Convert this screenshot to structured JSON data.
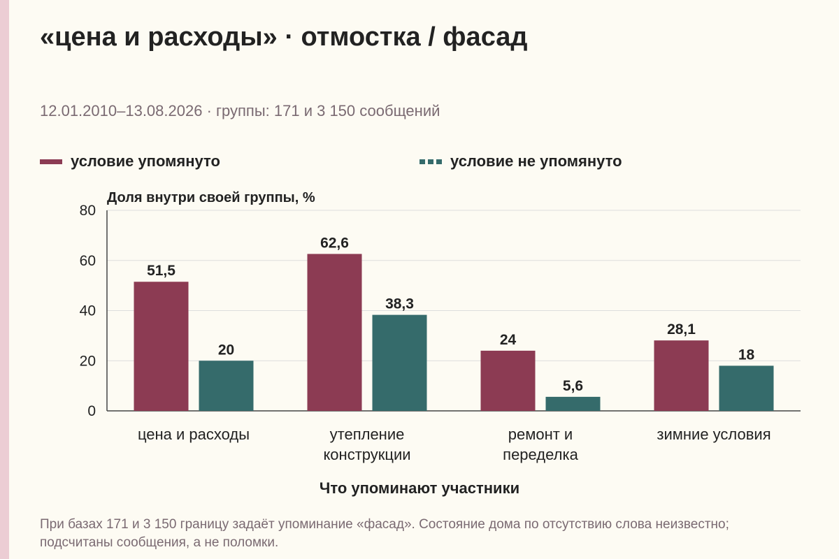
{
  "title": "«цена и расходы» · отмостка / фасад",
  "subtitle": "12.01.2010–13.08.2026 · группы: 171 и 3 150 сообщений",
  "note": "При базах 171 и 3 150 границу задаёт упоминание «фасад». Состояние дома по отсутствию слова неизвестно; подсчитаны сообщения, а не поломки.",
  "colors": {
    "mentioned": "#8c3b53",
    "not_mentioned": "#356b6b",
    "grid": "#dddddd",
    "axis": "#444444"
  },
  "chart_data": {
    "type": "bar",
    "title": "«цена и расходы» · отмостка / фасад",
    "categories": [
      [
        "цена и расходы"
      ],
      [
        "утепление",
        "конструкции"
      ],
      [
        "ремонт и",
        "переделка"
      ],
      [
        "зимние условия"
      ]
    ],
    "series": [
      {
        "name": "условие упомянуто",
        "values": [
          51.5,
          62.6,
          24,
          28.1
        ],
        "labels": [
          "51,5",
          "62,6",
          "24",
          "28,1"
        ]
      },
      {
        "name": "условие не упомянуто",
        "values": [
          20,
          38.3,
          5.6,
          18
        ],
        "labels": [
          "20",
          "38,3",
          "5,6",
          "18"
        ]
      }
    ],
    "xlabel": "Что упоминают участники",
    "ylabel": "Доля внутри своей группы, %",
    "ylim": [
      0,
      80
    ],
    "yticks": [
      0,
      20,
      40,
      60,
      80
    ],
    "grid": true,
    "legend": "top"
  }
}
